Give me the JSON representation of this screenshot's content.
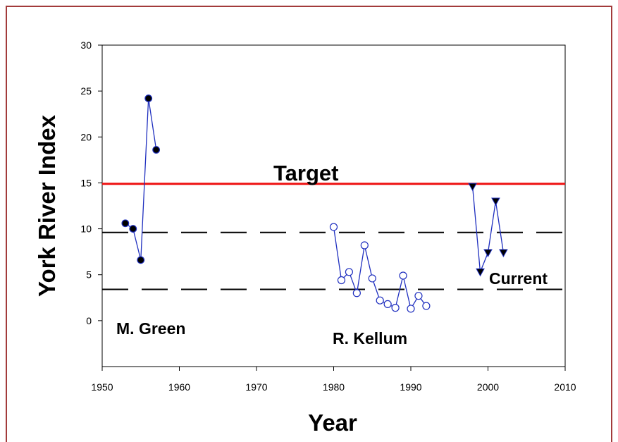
{
  "chart_data": {
    "type": "line",
    "xlabel": "Year",
    "ylabel": "York River Index",
    "xlim": [
      1950,
      2010
    ],
    "ylim": [
      -5,
      30
    ],
    "xticks": [
      1950,
      1960,
      1970,
      1980,
      1990,
      2000,
      2010
    ],
    "yticks": [
      0,
      5,
      10,
      15,
      20,
      25,
      30
    ],
    "grid": false,
    "series": [
      {
        "name": "M. Green",
        "marker": "filled-circle",
        "color": "#1f2fbf",
        "x": [
          1953,
          1954,
          1955,
          1956,
          1957
        ],
        "y": [
          10.6,
          10.0,
          6.6,
          24.2,
          18.6
        ]
      },
      {
        "name": "R. Kellum",
        "marker": "open-circle",
        "color": "#1f2fbf",
        "x": [
          1980,
          1981,
          1982,
          1983,
          1984,
          1985,
          1986,
          1987,
          1988,
          1989,
          1990,
          1991,
          1992
        ],
        "y": [
          10.2,
          4.4,
          5.3,
          3.0,
          8.2,
          4.6,
          2.2,
          1.8,
          1.4,
          4.9,
          1.3,
          2.7,
          1.6
        ]
      },
      {
        "name": "Current",
        "marker": "filled-triangle-down",
        "color": "#1f2fbf",
        "x": [
          1998,
          1999,
          2000,
          2001,
          2002
        ],
        "y": [
          14.6,
          5.3,
          7.4,
          13.0,
          7.4
        ]
      }
    ],
    "reference_lines": [
      {
        "label": "Target",
        "y": 14.9,
        "color": "#ee1111",
        "style": "solid"
      },
      {
        "label": "",
        "y": 9.6,
        "color": "#000000",
        "style": "dashed"
      },
      {
        "label": "",
        "y": 3.4,
        "color": "#000000",
        "style": "dashed"
      }
    ],
    "annotations": [
      {
        "id": "target",
        "text": "Target"
      },
      {
        "id": "green",
        "text": "M. Green"
      },
      {
        "id": "kellum",
        "text": "R. Kellum"
      },
      {
        "id": "current",
        "text": "Current"
      }
    ]
  }
}
